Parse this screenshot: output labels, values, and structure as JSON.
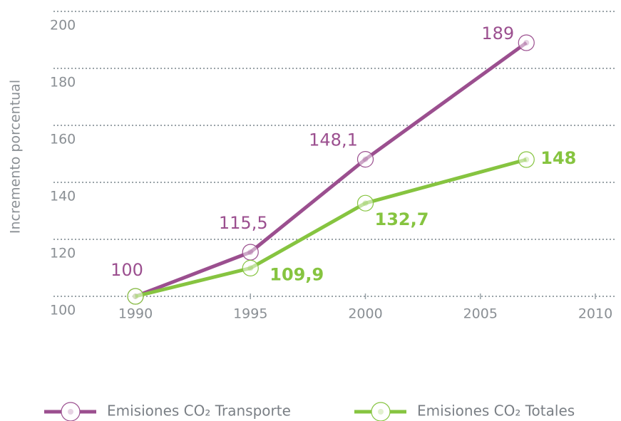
{
  "chart_data": {
    "type": "line",
    "y_label": "Incremento porcentual",
    "x": [
      1990,
      1995,
      2000,
      2007
    ],
    "xlim": [
      1990,
      2010
    ],
    "xticks": [
      1990,
      1995,
      2000,
      2005,
      2010
    ],
    "ylim": [
      100,
      200
    ],
    "yticks": [
      100,
      120,
      140,
      160,
      180,
      200
    ],
    "grid": true,
    "legend": "bottom",
    "series": [
      {
        "name": "Emisiones CO₂ Transporte",
        "color": "#9b4f8f",
        "values": [
          100,
          115.5,
          148.1,
          189
        ],
        "value_labels": [
          "100",
          "115,5",
          "148,1",
          "189"
        ]
      },
      {
        "name": "Emisiones CO₂ Totales",
        "color": "#86c440",
        "values": [
          100,
          109.9,
          132.7,
          148
        ],
        "value_labels": [
          "100",
          "109,9",
          "132,7",
          "148"
        ]
      }
    ]
  }
}
